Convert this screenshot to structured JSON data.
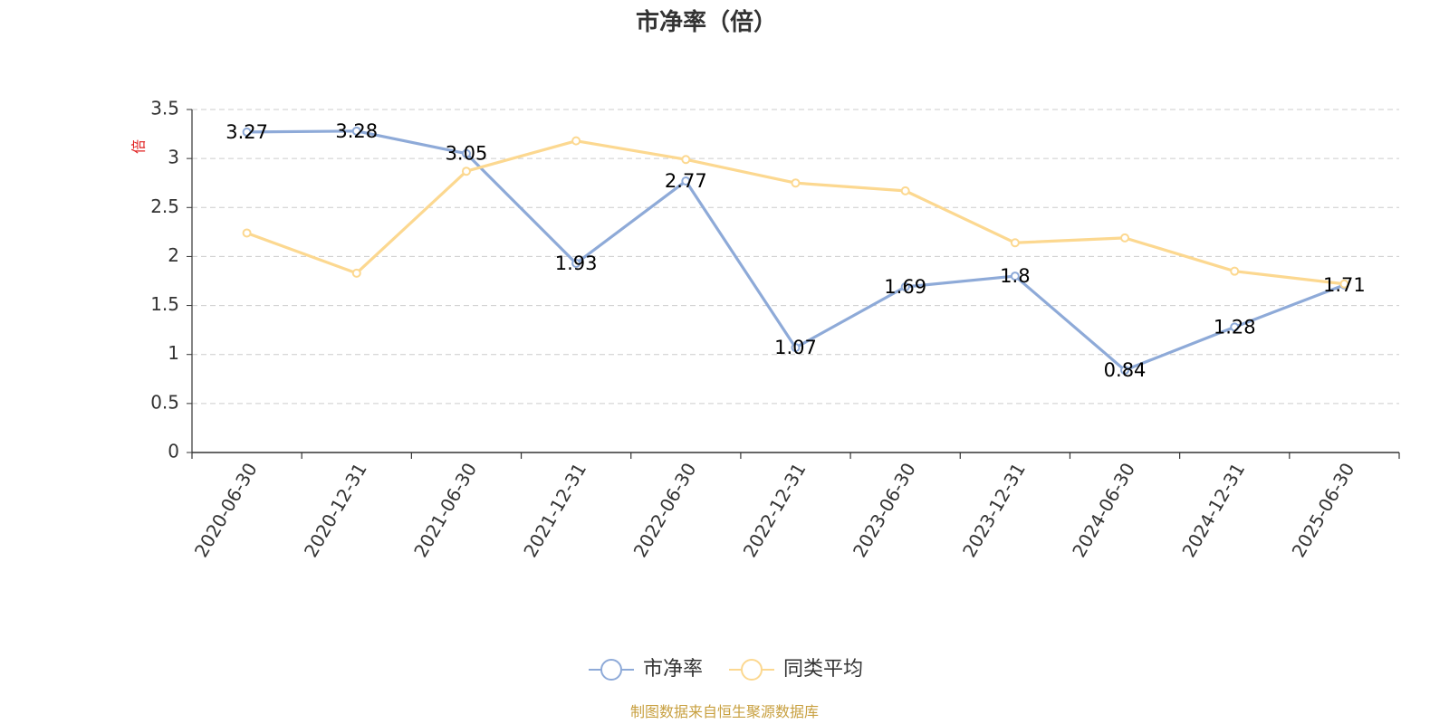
{
  "chart_data": {
    "type": "line",
    "title": "市净率（倍）",
    "ylabel": "倍",
    "ylim": [
      0,
      3.5
    ],
    "yticks": [
      "0",
      "0.5",
      "1",
      "1.5",
      "2",
      "2.5",
      "3",
      "3.5"
    ],
    "categories": [
      "2020-06-30",
      "2020-12-31",
      "2021-06-30",
      "2021-12-31",
      "2022-06-30",
      "2022-12-31",
      "2023-06-30",
      "2023-12-31",
      "2024-06-30",
      "2024-12-31",
      "2025-06-30"
    ],
    "series": [
      {
        "name": "市净率",
        "color": "#8eaad8",
        "values": [
          3.27,
          3.28,
          3.05,
          1.93,
          2.77,
          1.07,
          1.69,
          1.8,
          0.84,
          1.28,
          1.71
        ],
        "data_labels": [
          "3.27",
          "3.28",
          "3.05",
          "1.93",
          "2.77",
          "1.07",
          "1.69",
          "1.8",
          "0.84",
          "1.28",
          "1.71"
        ]
      },
      {
        "name": "同类平均",
        "color": "#fcd890",
        "values": [
          2.24,
          1.83,
          2.87,
          3.18,
          2.99,
          2.75,
          2.67,
          2.14,
          2.19,
          1.85,
          1.72
        ]
      }
    ],
    "grid": true,
    "legend_position": "bottom"
  },
  "footer": {
    "source": "制图数据来自恒生聚源数据库",
    "source_color": "#c8a040"
  }
}
